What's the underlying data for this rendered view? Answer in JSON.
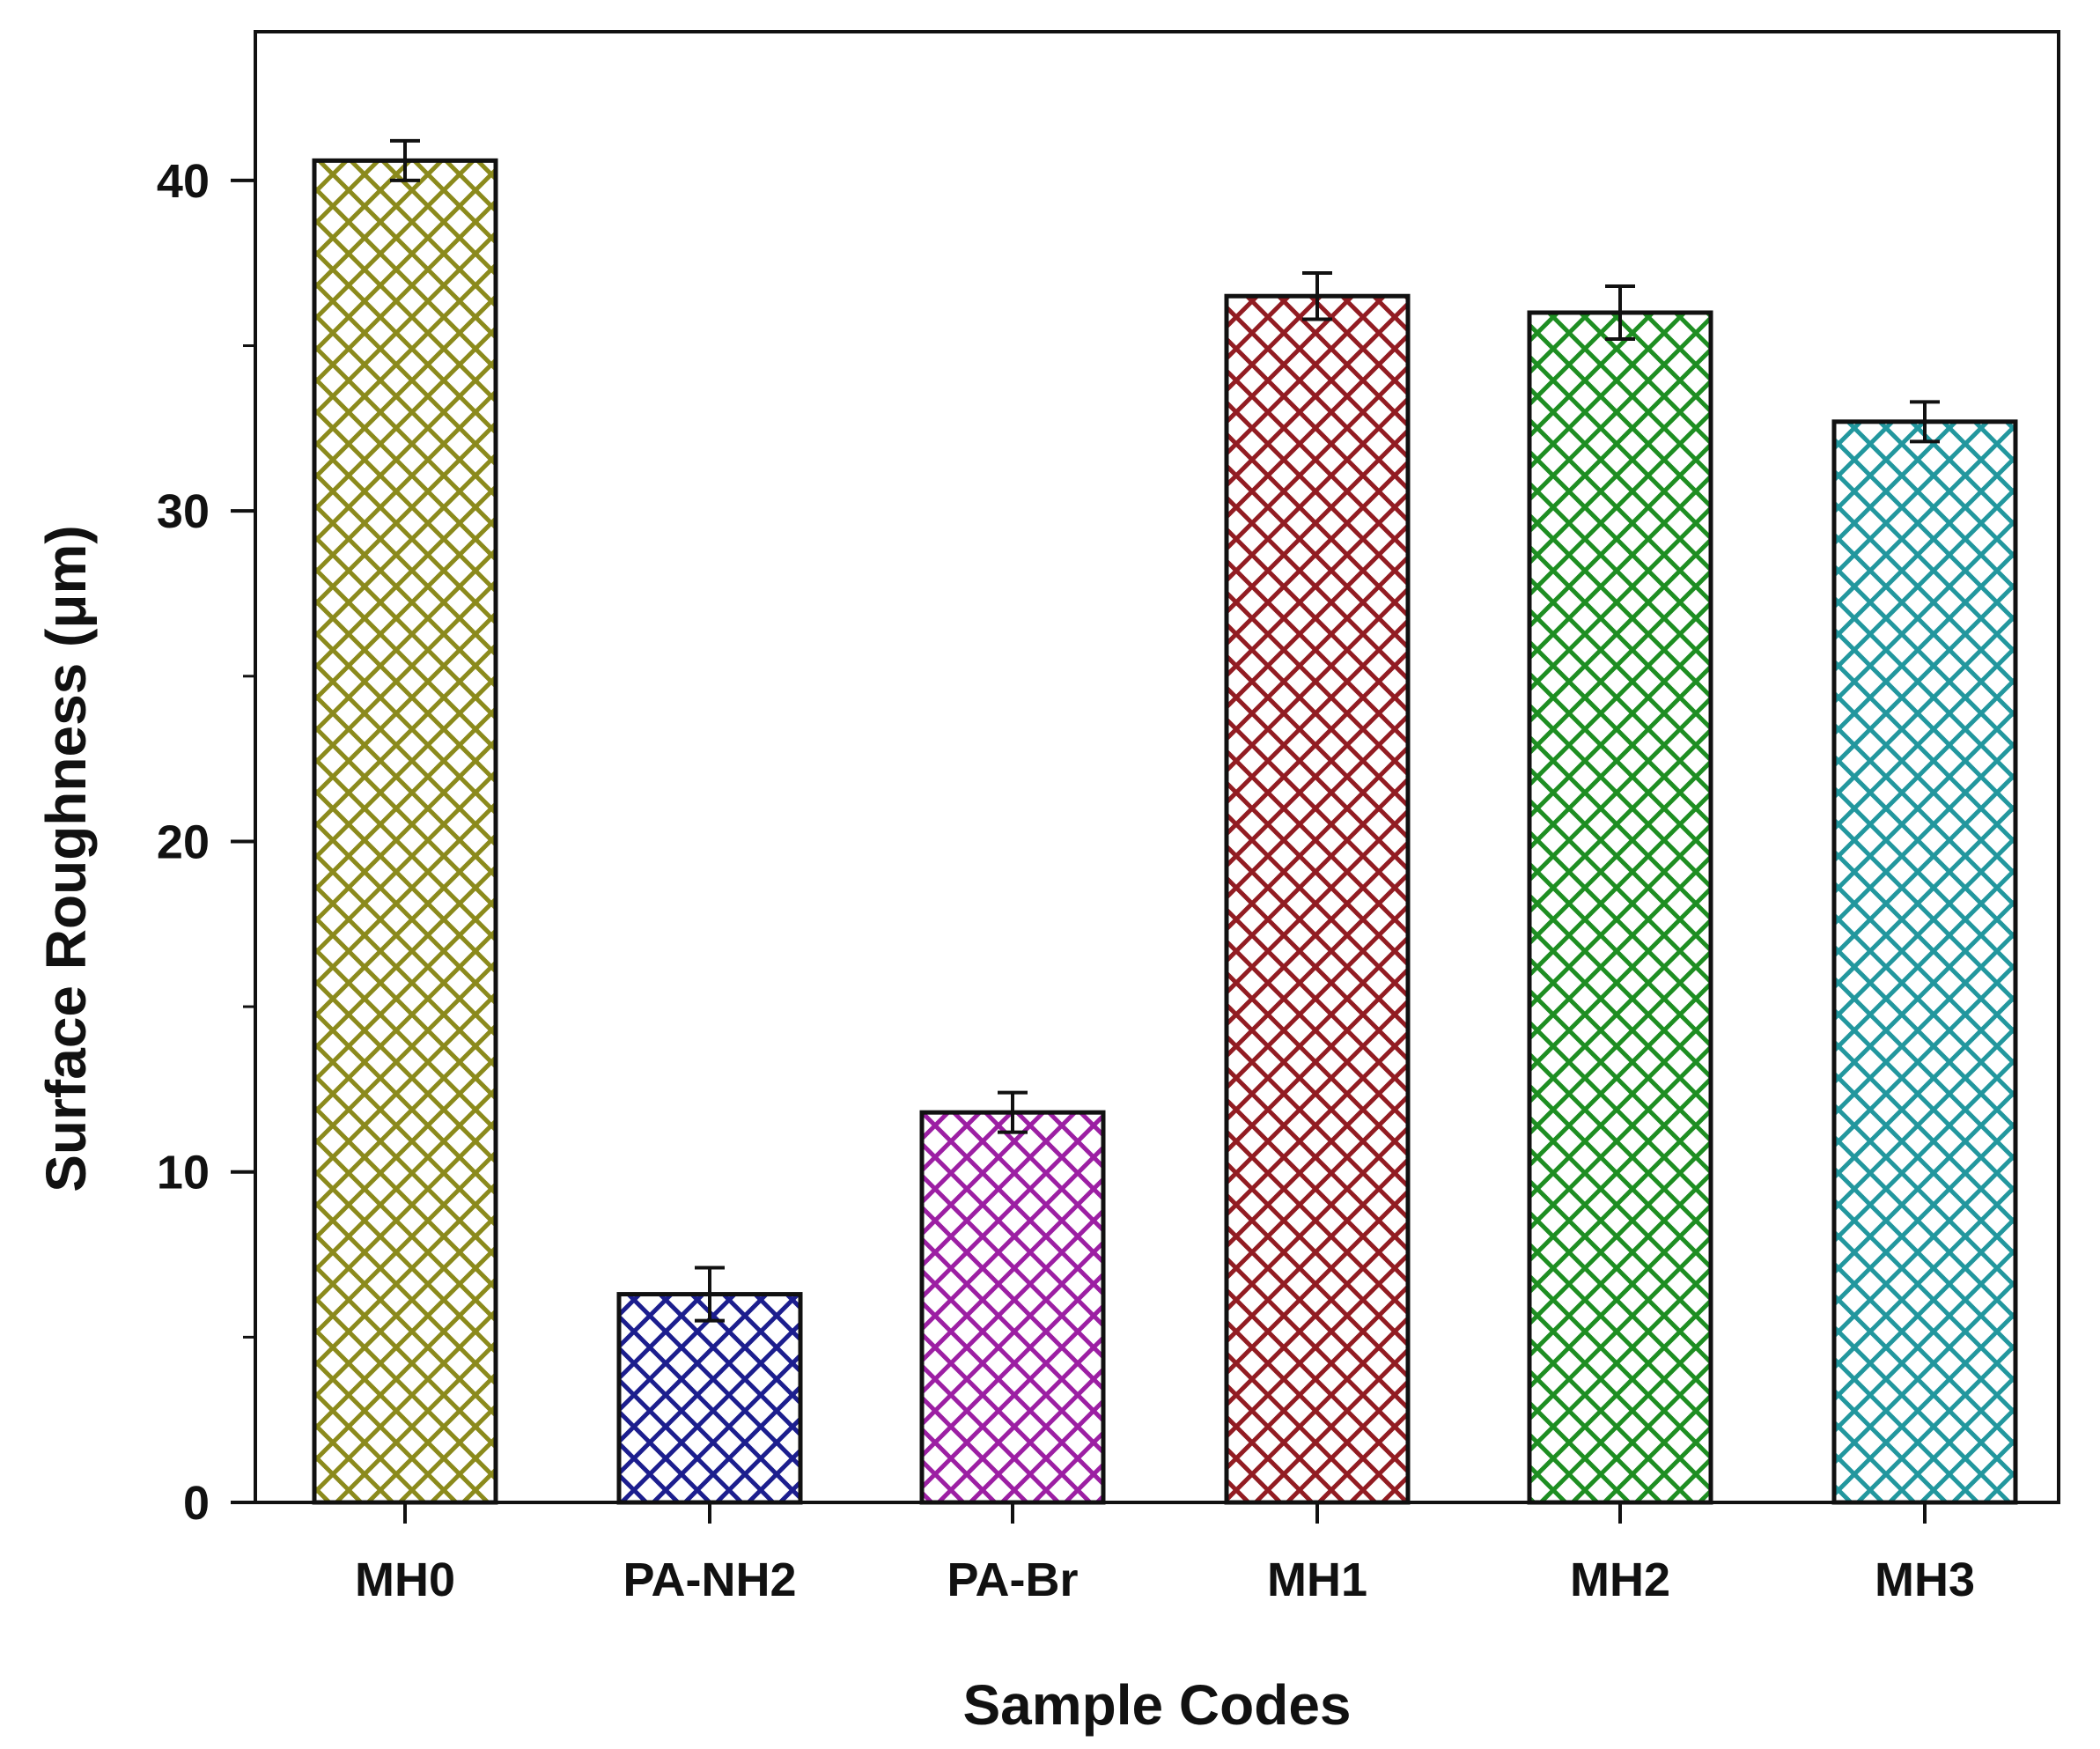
{
  "chart_data": {
    "type": "bar",
    "title": "",
    "xlabel": "Sample Codes",
    "ylabel": "Surface Roughness (μm)",
    "ylim": [
      0,
      44.5
    ],
    "yticks": [
      0,
      10,
      20,
      30,
      40
    ],
    "grid": false,
    "categories": [
      "MH0",
      "PA-NH2",
      "PA-Br",
      "MH1",
      "MH2",
      "MH3"
    ],
    "values": [
      40.6,
      6.3,
      11.8,
      36.5,
      36.0,
      32.7
    ],
    "errors": [
      0.6,
      0.8,
      0.6,
      0.7,
      0.8,
      0.6
    ],
    "fill_pattern": "crosshatch",
    "colors": [
      "#8b8a1c",
      "#1c1e8e",
      "#9c1fa3",
      "#921c22",
      "#1e8e22",
      "#22979e"
    ]
  }
}
